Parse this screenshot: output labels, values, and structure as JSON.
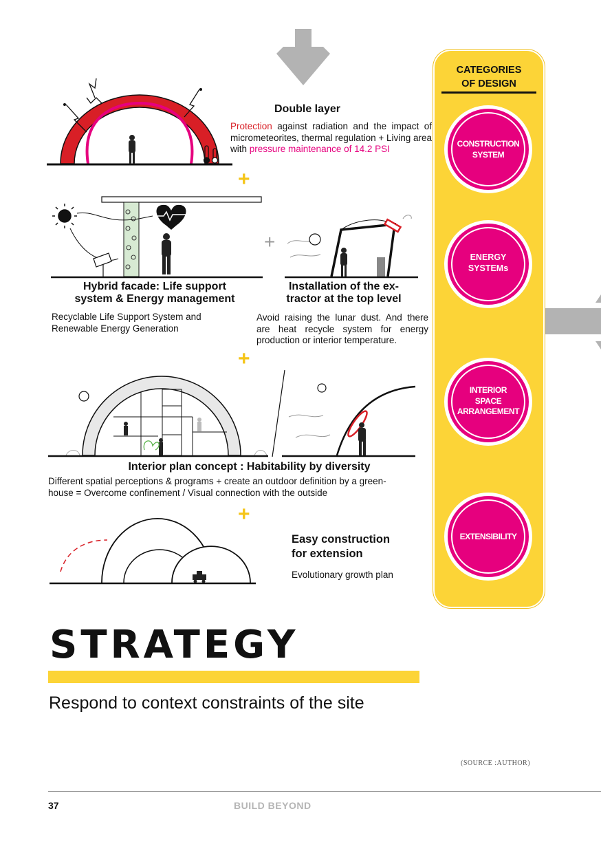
{
  "sections": {
    "double_layer": {
      "title": "Double layer",
      "text_highlight_red": "Protection",
      "text_mid": " against radiation and the impact of micrometeorites, thermal regulation + Living area with ",
      "text_highlight_pink": "pressure maintenance of 14.2 PSI"
    },
    "hybrid_facade": {
      "title_line1": "Hybrid facade: Life support",
      "title_line2": "system & Energy management",
      "text_line1": "Recyclable Life Support System and",
      "text_line2": "Renewable Energy Generation"
    },
    "extractor": {
      "title_line1": "Installation of the ex-",
      "title_line2": "tractor at the top level",
      "text": "Avoid raising the lunar dust. And there are heat recycle system for energy production or interior temperature."
    },
    "interior_plan": {
      "title": "Interior plan concept : Habitability by diversity",
      "text_line1": "Different spatial perceptions & programs + create an outdoor definition by a green-",
      "text_line2": "house = Overcome confinement / Visual connection with the outside"
    },
    "extension": {
      "title_line1": "Easy construction",
      "title_line2": "for extension",
      "text": "Evolutionary growth plan"
    },
    "plus_sign": "+"
  },
  "categories_panel": {
    "title_line1": "CATEGORIES",
    "title_line2": "OF DESIGN",
    "items": [
      {
        "line1": "CONSTRUCTION",
        "line2": "SYSTEM",
        "line3": ""
      },
      {
        "line1": "ENERGY",
        "line2": "SYSTEMs",
        "line3": ""
      },
      {
        "line1": "INTERIOR",
        "line2": "SPACE",
        "line3": "ARRANGEMENT"
      },
      {
        "line1": "EXTENSIBILITY",
        "line2": "",
        "line3": ""
      }
    ]
  },
  "strategy": {
    "heading": "STRATEGY",
    "subtitle": "Respond to context constraints of the site"
  },
  "source_note": "(SOURCE :AUTHOR)",
  "footer": {
    "page_number": "37",
    "book_title": "BUILD BEYOND"
  },
  "colors": {
    "accent_yellow": "#fcd437",
    "magenta": "#e6007e",
    "red": "#d81f26",
    "gray_arrow": "#b3b3b3"
  },
  "icons": [
    "down-arrow-icon",
    "right-arrow-icon",
    "sun-icon",
    "heart-icon",
    "thermometer-icon",
    "solar-panel-icon",
    "person-icon",
    "planet-icon",
    "rover-icon"
  ]
}
